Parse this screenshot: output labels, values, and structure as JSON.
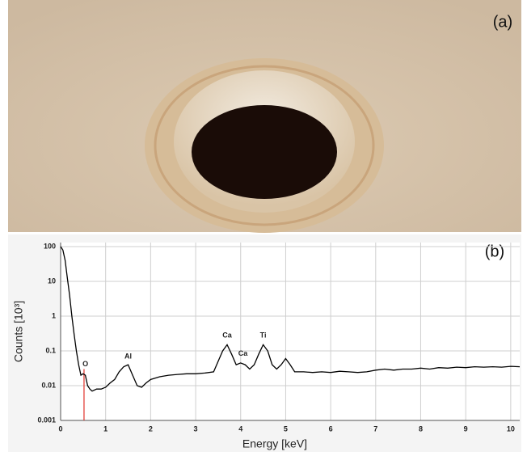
{
  "photo": {
    "label": "(a)"
  },
  "chart_data": {
    "type": "line",
    "panel_label": "(b)",
    "x_label": "Energy [keV]",
    "y_label": "Counts [10³]",
    "yscale": "log",
    "grid": true,
    "xlim": [
      0,
      10.2
    ],
    "xticks": [
      0,
      1,
      2,
      3,
      4,
      5,
      6,
      7,
      8,
      9,
      10
    ],
    "ylim": [
      0.001,
      100
    ],
    "yticks": [
      0.001,
      0.01,
      0.1,
      1,
      10,
      100
    ],
    "series": [
      {
        "color": "#000000",
        "x": [
          0,
          0.05,
          0.1,
          0.15,
          0.2,
          0.25,
          0.3,
          0.35,
          0.4,
          0.45,
          0.5,
          0.55,
          0.6,
          0.65,
          0.7,
          0.8,
          0.9,
          1.0,
          1.1,
          1.2,
          1.3,
          1.4,
          1.5,
          1.6,
          1.7,
          1.8,
          1.9,
          2.0,
          2.2,
          2.4,
          2.6,
          2.8,
          3.0,
          3.2,
          3.4,
          3.5,
          3.6,
          3.7,
          3.8,
          3.9,
          4.0,
          4.1,
          4.2,
          4.3,
          4.4,
          4.5,
          4.6,
          4.7,
          4.8,
          4.9,
          5.0,
          5.1,
          5.2,
          5.4,
          5.6,
          5.8,
          6.0,
          6.2,
          6.4,
          6.6,
          6.8,
          7.0,
          7.2,
          7.4,
          7.6,
          7.8,
          8.0,
          8.2,
          8.4,
          8.6,
          8.8,
          9.0,
          9.2,
          9.4,
          9.6,
          9.8,
          10.0,
          10.2
        ],
        "values": [
          100,
          80,
          40,
          12,
          4,
          1,
          0.3,
          0.1,
          0.04,
          0.02,
          0.022,
          0.02,
          0.01,
          0.008,
          0.007,
          0.008,
          0.008,
          0.009,
          0.012,
          0.015,
          0.025,
          0.035,
          0.04,
          0.02,
          0.01,
          0.009,
          0.012,
          0.015,
          0.018,
          0.02,
          0.021,
          0.022,
          0.022,
          0.023,
          0.025,
          0.05,
          0.1,
          0.15,
          0.08,
          0.04,
          0.045,
          0.04,
          0.03,
          0.04,
          0.08,
          0.15,
          0.1,
          0.04,
          0.03,
          0.04,
          0.06,
          0.04,
          0.025,
          0.025,
          0.024,
          0.025,
          0.024,
          0.026,
          0.025,
          0.024,
          0.025,
          0.028,
          0.03,
          0.028,
          0.03,
          0.03,
          0.032,
          0.03,
          0.033,
          0.032,
          0.034,
          0.033,
          0.035,
          0.034,
          0.035,
          0.034,
          0.036,
          0.035
        ]
      }
    ],
    "annotations": [
      {
        "text": "O",
        "x": 0.55,
        "y": 0.03
      },
      {
        "text": "Al",
        "x": 1.5,
        "y": 0.05
      },
      {
        "text": "Ca",
        "x": 3.7,
        "y": 0.2
      },
      {
        "text": "Ca",
        "x": 4.05,
        "y": 0.06
      },
      {
        "text": "Ti",
        "x": 4.5,
        "y": 0.2
      }
    ],
    "marker_line": {
      "x": 0.52,
      "color": "#e0302a"
    }
  }
}
